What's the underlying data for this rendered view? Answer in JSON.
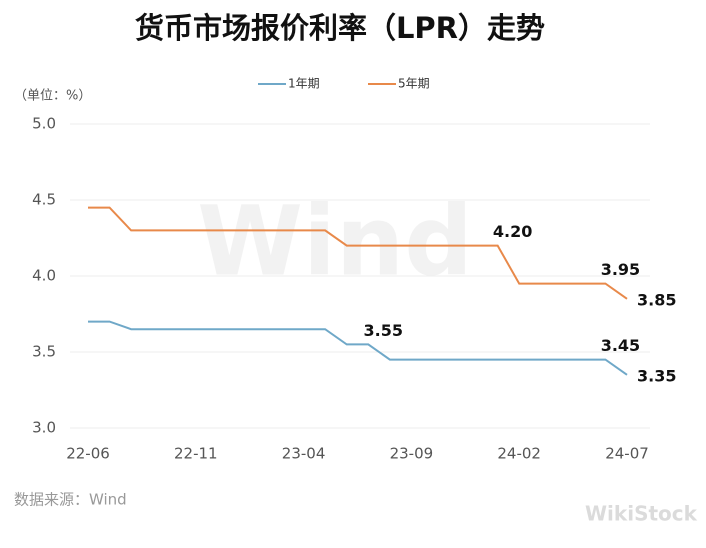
{
  "chart_data": {
    "type": "line",
    "title": "货币市场报价利率（LPR）走势",
    "unit_label": "（单位：%）",
    "source": "数据来源：Wind",
    "watermarks": [
      "Wind",
      "WikiStock"
    ],
    "categories": [
      "22-06",
      null,
      null,
      null,
      null,
      "22-11",
      null,
      null,
      null,
      null,
      "23-04",
      null,
      null,
      null,
      null,
      "23-09",
      null,
      null,
      null,
      null,
      "24-02",
      null,
      null,
      null,
      null,
      "24-07"
    ],
    "series": [
      {
        "name": "1年期",
        "color": "#6fa8c8",
        "values": [
          3.7,
          3.7,
          3.65,
          3.65,
          3.65,
          3.65,
          3.65,
          3.65,
          3.65,
          3.65,
          3.65,
          3.65,
          3.55,
          3.55,
          3.45,
          3.45,
          3.45,
          3.45,
          3.45,
          3.45,
          3.45,
          3.45,
          3.45,
          3.45,
          3.45,
          3.35
        ],
        "value_labels": [
          null,
          null,
          null,
          null,
          null,
          null,
          null,
          null,
          null,
          null,
          null,
          null,
          null,
          "3.55",
          null,
          null,
          null,
          null,
          null,
          null,
          null,
          null,
          null,
          null,
          "3.45",
          "3.35"
        ]
      },
      {
        "name": "5年期",
        "color": "#e8894a",
        "values": [
          4.45,
          4.45,
          4.3,
          4.3,
          4.3,
          4.3,
          4.3,
          4.3,
          4.3,
          4.3,
          4.3,
          4.3,
          4.2,
          4.2,
          4.2,
          4.2,
          4.2,
          4.2,
          4.2,
          4.2,
          3.95,
          3.95,
          3.95,
          3.95,
          3.95,
          3.85
        ],
        "value_labels": [
          null,
          null,
          null,
          null,
          null,
          null,
          null,
          null,
          null,
          null,
          null,
          null,
          null,
          null,
          null,
          null,
          null,
          null,
          null,
          "4.20",
          null,
          null,
          null,
          null,
          "3.95",
          "3.85"
        ]
      }
    ],
    "ylim": [
      3,
      5
    ],
    "yticks": [
      {
        "value": 3,
        "label": "3.0"
      },
      3.5,
      {
        "value": 4,
        "label": "4.0"
      },
      4.5,
      {
        "value": 5,
        "label": "5.0"
      }
    ],
    "grid": true,
    "legend": "top"
  }
}
